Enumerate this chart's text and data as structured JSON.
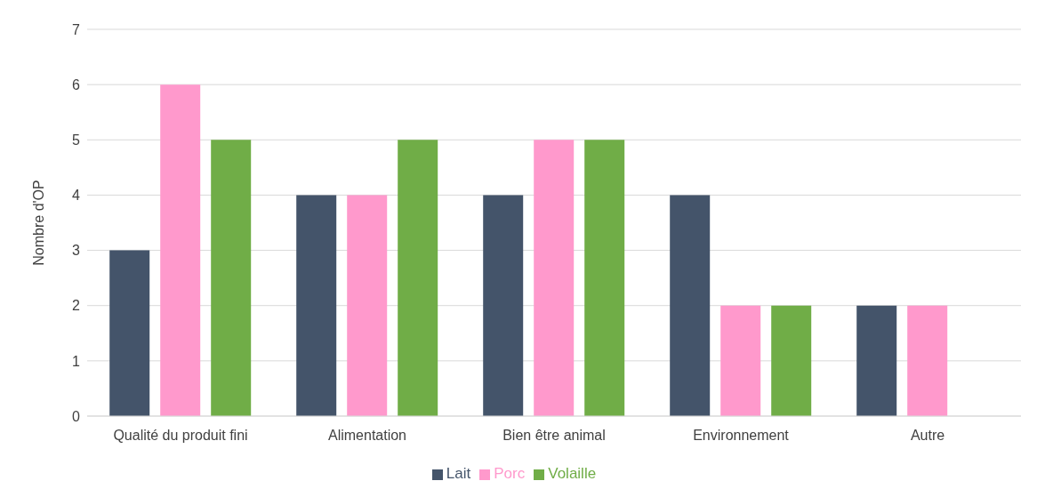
{
  "chart_data": {
    "type": "bar",
    "ylabel": "Nombre d'OP",
    "categories": [
      "Qualité du produit fini",
      "Alimentation",
      "Bien être animal",
      "Environnement",
      "Autre"
    ],
    "series": [
      {
        "name": "Lait",
        "color": "#44546a",
        "values": [
          3,
          4,
          4,
          4,
          2
        ]
      },
      {
        "name": "Porc",
        "color": "#ff99cc",
        "values": [
          6,
          4,
          5,
          2,
          2
        ]
      },
      {
        "name": "Volaille",
        "color": "#70ad47",
        "values": [
          5,
          5,
          5,
          2,
          0
        ]
      }
    ],
    "ylim": [
      0,
      7
    ],
    "yticks": [
      0,
      1,
      2,
      3,
      4,
      5,
      6,
      7
    ],
    "grid": "y",
    "legend": "bottom"
  }
}
